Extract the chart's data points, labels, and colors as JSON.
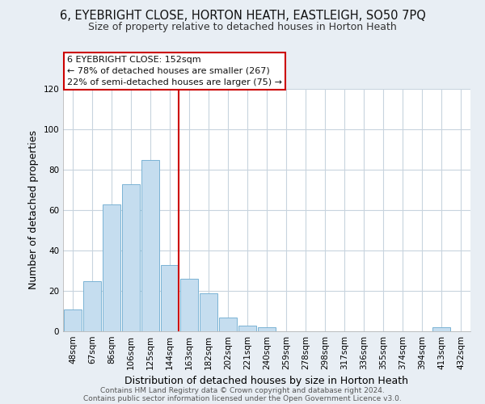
{
  "title": "6, EYEBRIGHT CLOSE, HORTON HEATH, EASTLEIGH, SO50 7PQ",
  "subtitle": "Size of property relative to detached houses in Horton Heath",
  "xlabel": "Distribution of detached houses by size in Horton Heath",
  "ylabel": "Number of detached properties",
  "bar_labels": [
    "48sqm",
    "67sqm",
    "86sqm",
    "106sqm",
    "125sqm",
    "144sqm",
    "163sqm",
    "182sqm",
    "202sqm",
    "221sqm",
    "240sqm",
    "259sqm",
    "278sqm",
    "298sqm",
    "317sqm",
    "336sqm",
    "355sqm",
    "374sqm",
    "394sqm",
    "413sqm",
    "432sqm"
  ],
  "bar_values": [
    11,
    25,
    63,
    73,
    85,
    33,
    26,
    19,
    7,
    3,
    2,
    0,
    0,
    0,
    0,
    0,
    0,
    0,
    0,
    2,
    0
  ],
  "bar_color": "#c5ddef",
  "bar_edge_color": "#7ab3d4",
  "ylim": [
    0,
    120
  ],
  "yticks": [
    0,
    20,
    40,
    60,
    80,
    100,
    120
  ],
  "vline_x_index": 5,
  "vline_color": "#cc0000",
  "annotation_title": "6 EYEBRIGHT CLOSE: 152sqm",
  "annotation_line1": "← 78% of detached houses are smaller (267)",
  "annotation_line2": "22% of semi-detached houses are larger (75) →",
  "annotation_box_color": "#ffffff",
  "annotation_box_edge": "#cc0000",
  "footer_line1": "Contains HM Land Registry data © Crown copyright and database right 2024.",
  "footer_line2": "Contains public sector information licensed under the Open Government Licence v3.0.",
  "bg_color": "#e8eef4",
  "plot_bg_color": "#ffffff",
  "grid_color": "#c8d4de",
  "title_fontsize": 10.5,
  "subtitle_fontsize": 9,
  "tick_fontsize": 7.5,
  "xlabel_fontsize": 9,
  "ylabel_fontsize": 9
}
